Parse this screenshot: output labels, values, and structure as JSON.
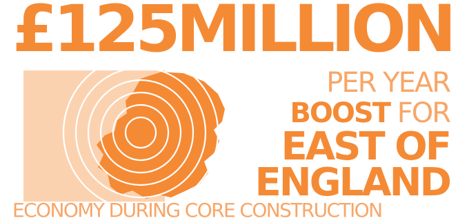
{
  "headline": "£125MILLION",
  "per_year": "PER YEAR",
  "boost_strong": "BOOST",
  "boost_for": "FOR",
  "east_of": "EAST OF",
  "england": "ENGLAND",
  "footer": "ECONOMY DURING CORE CONSTRUCTION",
  "colors": {
    "primary_orange": "#f58a35",
    "light_orange": "#f7a668",
    "pale_orange": "#fbd2b0"
  }
}
